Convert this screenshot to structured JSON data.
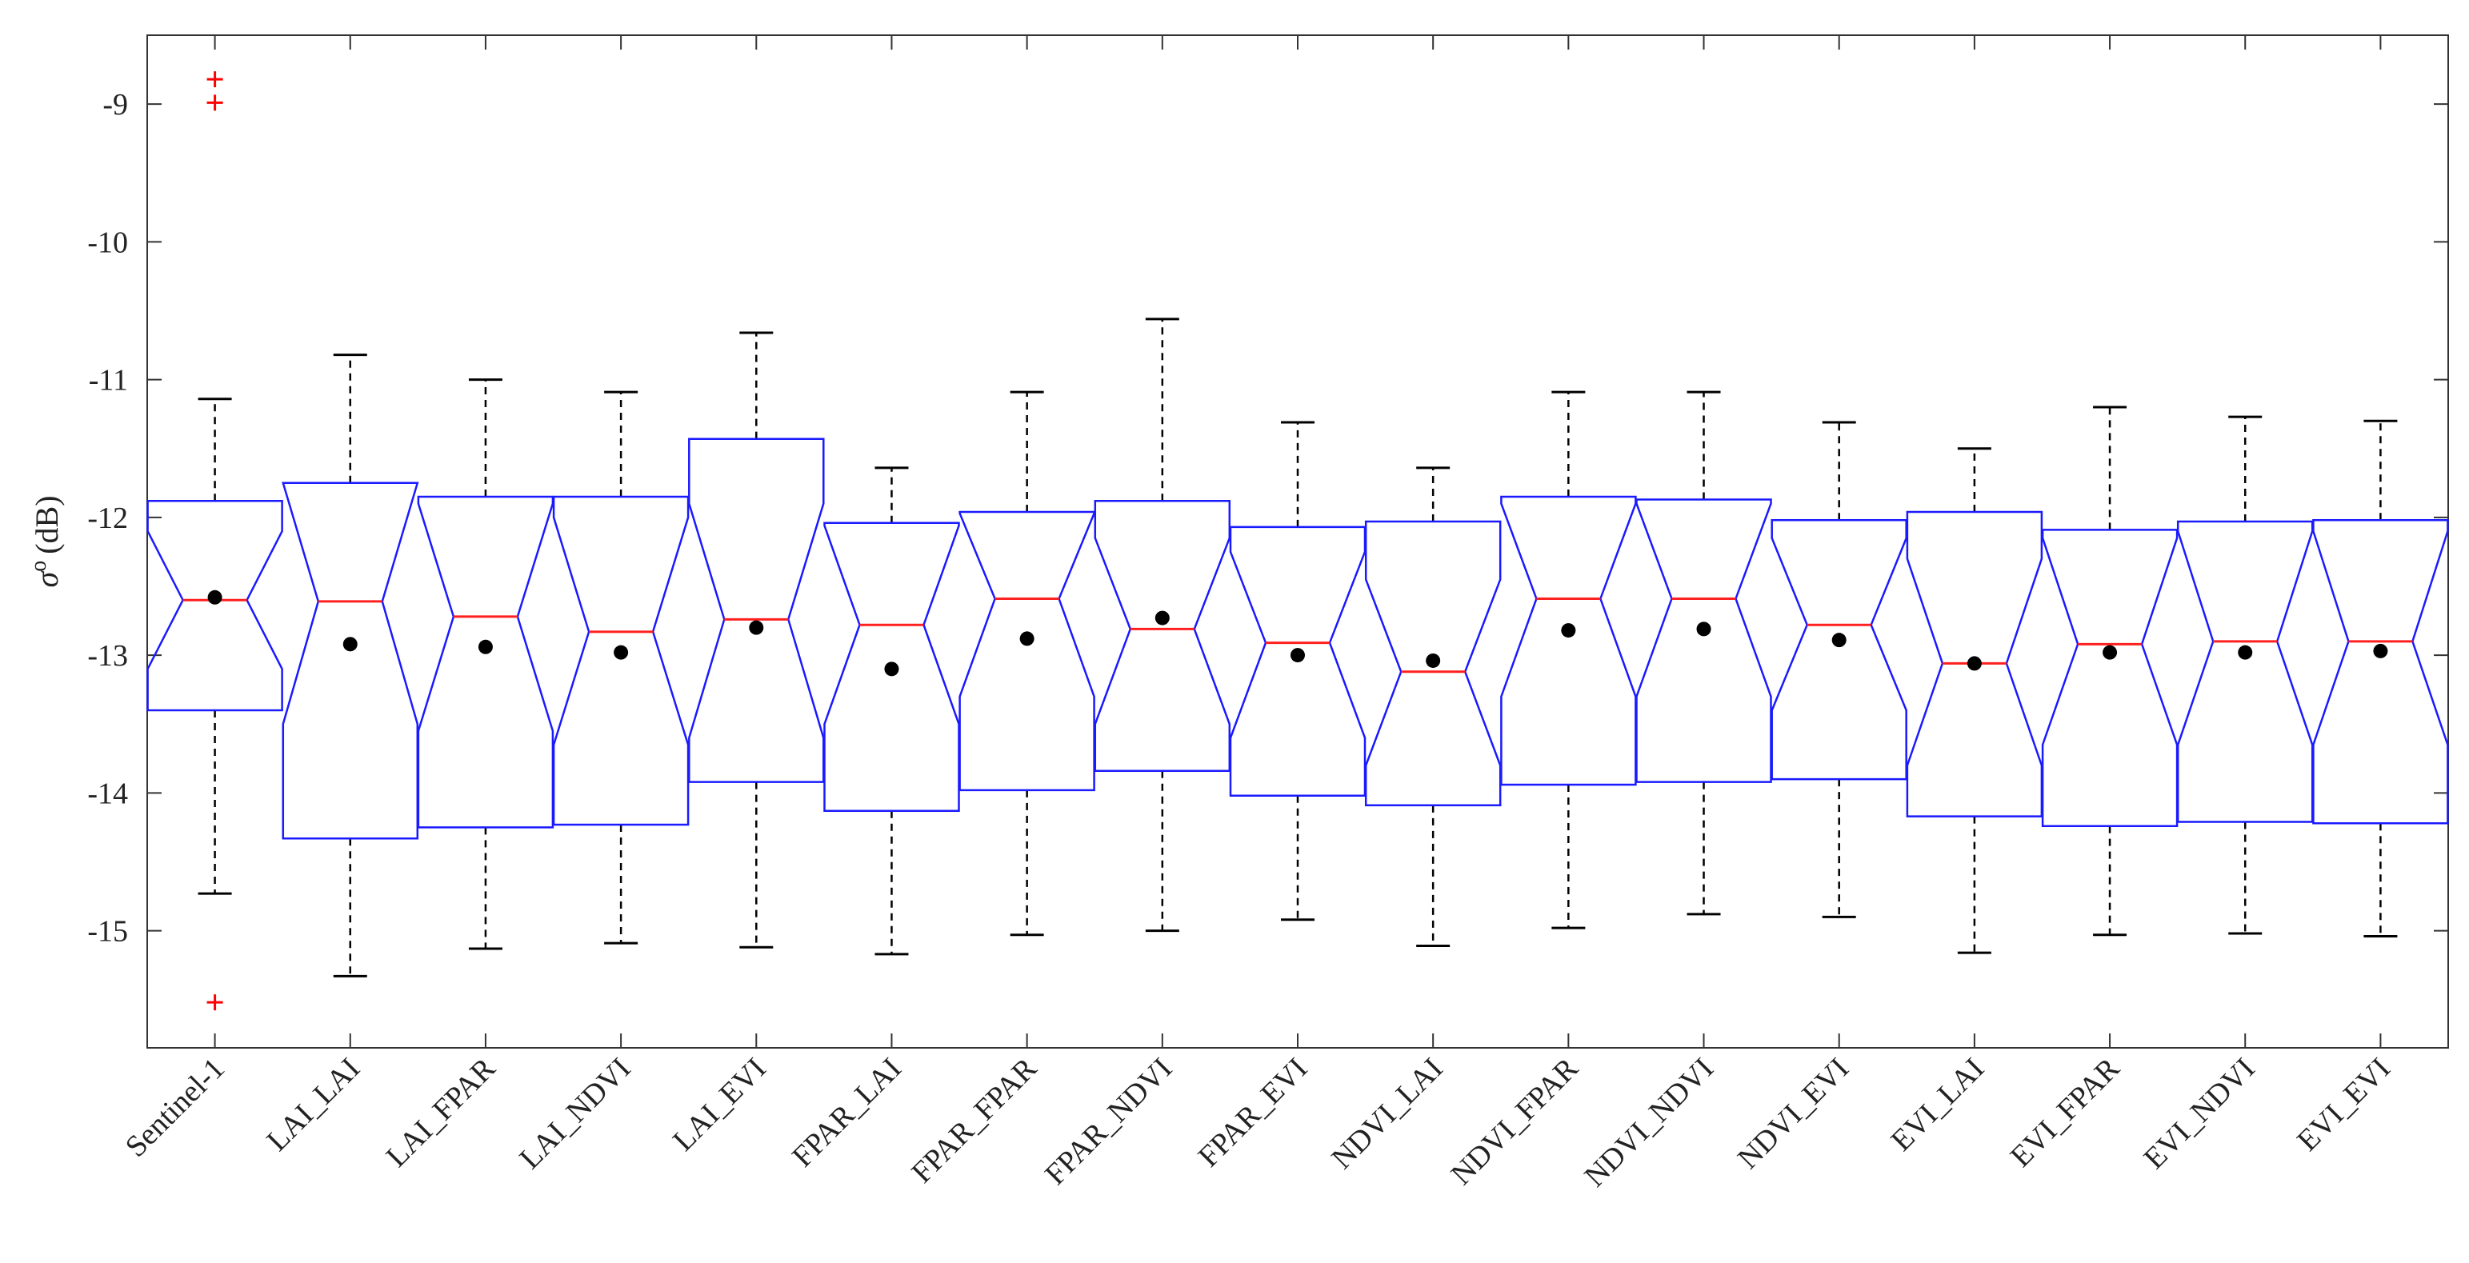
{
  "chart_data": {
    "type": "boxplot",
    "title": "",
    "xlabel": "",
    "ylabel": {
      "symbol": "σ",
      "superscript": "o",
      "unit": "(dB)"
    },
    "ylim": [
      -15.85,
      -8.5
    ],
    "yticks": [
      -9,
      -10,
      -11,
      -12,
      -13,
      -14,
      -15
    ],
    "notched": true,
    "colors": {
      "box": "#1a1aff",
      "median": "#ff2020",
      "whisker": "#000000",
      "mean": "#000000",
      "outlier": "#ff0000"
    },
    "categories": [
      "Sentinel-1",
      "LAI_LAI",
      "LAI_FPAR",
      "LAI_NDVI",
      "LAI_EVI",
      "FPAR_LAI",
      "FPAR_FPAR",
      "FPAR_NDVI",
      "FPAR_EVI",
      "NDVI_LAI",
      "NDVI_FPAR",
      "NDVI_NDVI",
      "NDVI_EVI",
      "EVI_LAI",
      "EVI_FPAR",
      "EVI_NDVI",
      "EVI_EVI"
    ],
    "boxes": [
      {
        "whisker_low": -14.73,
        "q1": -13.4,
        "median": -12.6,
        "q3": -11.88,
        "whisker_high": -11.14,
        "notch_low": -13.1,
        "notch_high": -12.1,
        "mean": -12.58,
        "outliers": [
          -8.82,
          -8.99,
          -15.52
        ]
      },
      {
        "whisker_low": -15.33,
        "q1": -14.33,
        "median": -12.61,
        "q3": -11.75,
        "whisker_high": -10.82,
        "notch_low": -13.5,
        "notch_high": -11.75,
        "mean": -12.92,
        "outliers": []
      },
      {
        "whisker_low": -15.13,
        "q1": -14.25,
        "median": -12.72,
        "q3": -11.85,
        "whisker_high": -11.0,
        "notch_low": -13.55,
        "notch_high": -11.9,
        "mean": -12.94,
        "outliers": []
      },
      {
        "whisker_low": -15.09,
        "q1": -14.23,
        "median": -12.83,
        "q3": -11.85,
        "whisker_high": -11.09,
        "notch_low": -13.65,
        "notch_high": -12.0,
        "mean": -12.98,
        "outliers": []
      },
      {
        "whisker_low": -15.12,
        "q1": -13.92,
        "median": -12.74,
        "q3": -11.43,
        "whisker_high": -10.66,
        "notch_low": -13.6,
        "notch_high": -11.9,
        "mean": -12.8,
        "outliers": []
      },
      {
        "whisker_low": -15.17,
        "q1": -14.13,
        "median": -12.78,
        "q3": -12.04,
        "whisker_high": -11.64,
        "notch_low": -13.5,
        "notch_high": -12.06,
        "mean": -13.1,
        "outliers": []
      },
      {
        "whisker_low": -15.03,
        "q1": -13.98,
        "median": -12.59,
        "q3": -11.96,
        "whisker_high": -11.09,
        "notch_low": -13.3,
        "notch_high": -11.97,
        "mean": -12.88,
        "outliers": []
      },
      {
        "whisker_low": -15.0,
        "q1": -13.84,
        "median": -12.81,
        "q3": -11.88,
        "whisker_high": -10.56,
        "notch_low": -13.5,
        "notch_high": -12.15,
        "mean": -12.73,
        "outliers": []
      },
      {
        "whisker_low": -14.92,
        "q1": -14.02,
        "median": -12.91,
        "q3": -12.07,
        "whisker_high": -11.31,
        "notch_low": -13.6,
        "notch_high": -12.25,
        "mean": -13.0,
        "outliers": []
      },
      {
        "whisker_low": -15.11,
        "q1": -14.09,
        "median": -13.12,
        "q3": -12.03,
        "whisker_high": -11.64,
        "notch_low": -13.8,
        "notch_high": -12.45,
        "mean": -13.04,
        "outliers": []
      },
      {
        "whisker_low": -14.98,
        "q1": -13.94,
        "median": -12.59,
        "q3": -11.85,
        "whisker_high": -11.09,
        "notch_low": -13.3,
        "notch_high": -11.9,
        "mean": -12.82,
        "outliers": []
      },
      {
        "whisker_low": -14.88,
        "q1": -13.92,
        "median": -12.59,
        "q3": -11.87,
        "whisker_high": -11.09,
        "notch_low": -13.3,
        "notch_high": -11.9,
        "mean": -12.81,
        "outliers": []
      },
      {
        "whisker_low": -14.9,
        "q1": -13.9,
        "median": -12.78,
        "q3": -12.02,
        "whisker_high": -11.31,
        "notch_low": -13.4,
        "notch_high": -12.15,
        "mean": -12.89,
        "outliers": []
      },
      {
        "whisker_low": -15.16,
        "q1": -14.17,
        "median": -13.06,
        "q3": -11.96,
        "whisker_high": -11.5,
        "notch_low": -13.8,
        "notch_high": -12.3,
        "mean": -13.06,
        "outliers": []
      },
      {
        "whisker_low": -15.03,
        "q1": -14.24,
        "median": -12.92,
        "q3": -12.09,
        "whisker_high": -11.2,
        "notch_low": -13.65,
        "notch_high": -12.15,
        "mean": -12.98,
        "outliers": []
      },
      {
        "whisker_low": -15.02,
        "q1": -14.21,
        "median": -12.9,
        "q3": -12.03,
        "whisker_high": -11.27,
        "notch_low": -13.65,
        "notch_high": -12.1,
        "mean": -12.98,
        "outliers": []
      },
      {
        "whisker_low": -15.04,
        "q1": -14.22,
        "median": -12.9,
        "q3": -12.02,
        "whisker_high": -11.3,
        "notch_low": -13.65,
        "notch_high": -12.1,
        "mean": -12.97,
        "outliers": []
      }
    ]
  }
}
